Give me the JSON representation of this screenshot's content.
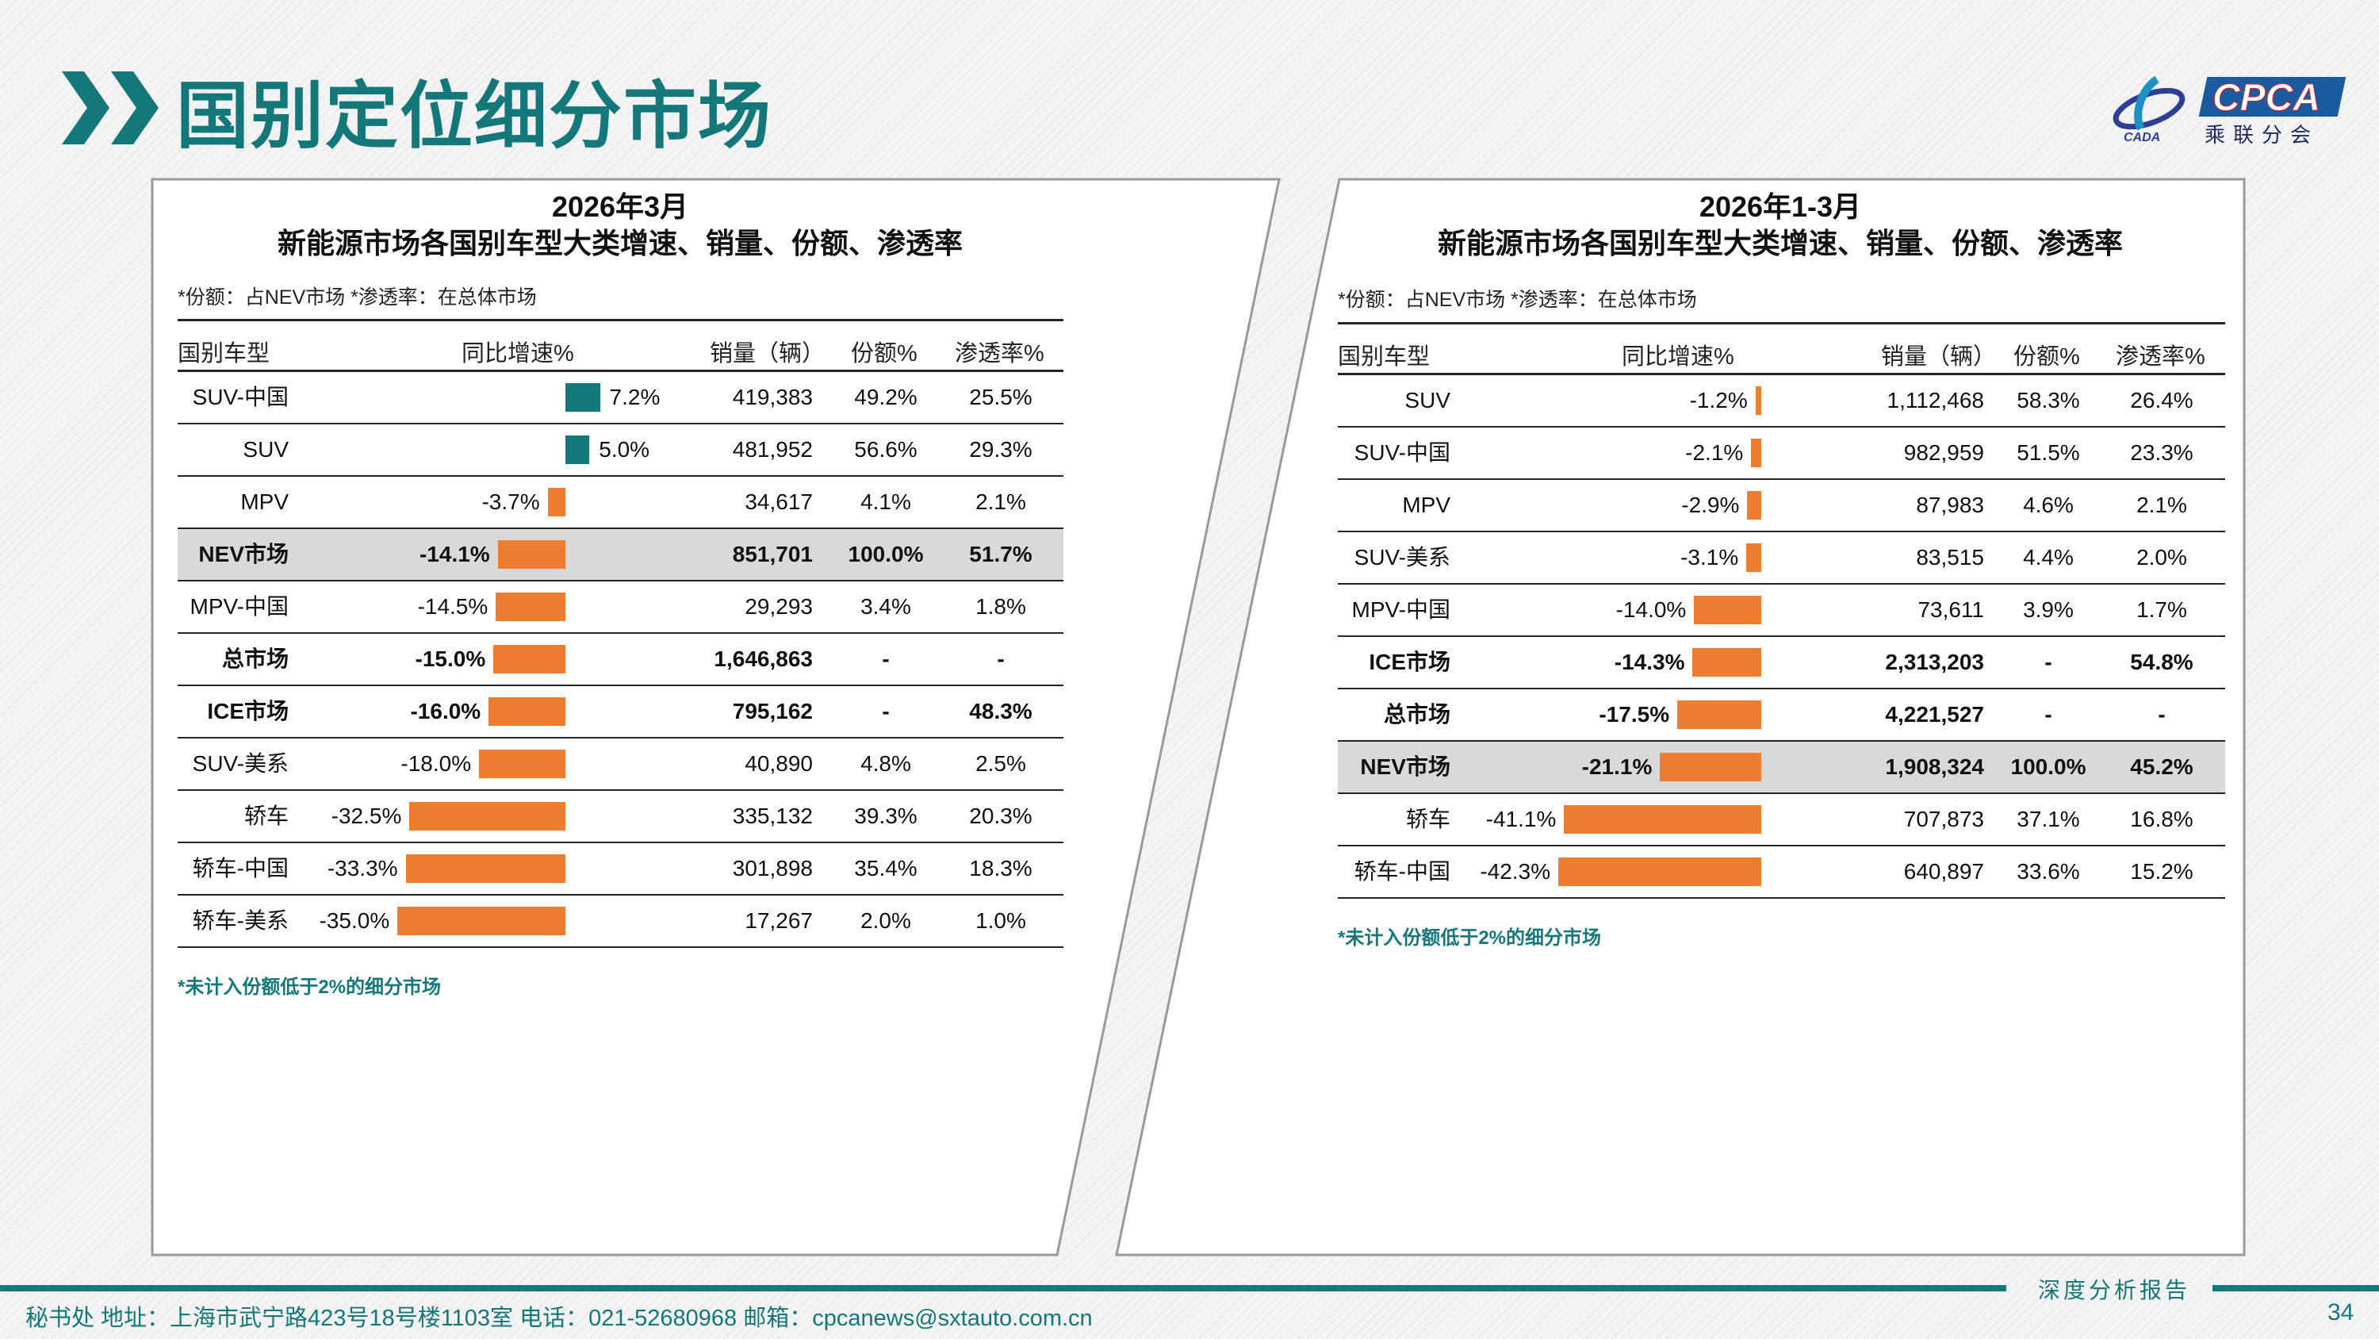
{
  "header": {
    "title": "国别定位细分市场",
    "logo_text": "CPCA",
    "logo_sub": "乘联分会",
    "logo_left": "CADA"
  },
  "colors": {
    "teal": "#14777a",
    "positive_bar": "#14777a",
    "negative_bar": "#ed7d31",
    "highlight_row": "#d9d9d9"
  },
  "left": {
    "title1": "2026年3月",
    "title2": "新能源市场各国别车型大类增速、销量、份额、渗透率",
    "note": "*份额：占NEV市场   *渗透率：在总体市场",
    "columns": [
      "国别车型",
      "同比增速%",
      "销量（辆）",
      "份额%",
      "渗透率%"
    ],
    "rows": [
      {
        "name": "SUV-中国",
        "growth": "7.2%",
        "sales": "419,383",
        "share": "49.2%",
        "pen": "25.5%"
      },
      {
        "name": "SUV",
        "growth": "5.0%",
        "sales": "481,952",
        "share": "56.6%",
        "pen": "29.3%"
      },
      {
        "name": "MPV",
        "growth": "-3.7%",
        "sales": "34,617",
        "share": "4.1%",
        "pen": "2.1%"
      },
      {
        "name": "NEV市场",
        "growth": "-14.1%",
        "sales": "851,701",
        "share": "100.0%",
        "pen": "51.7%",
        "bold": true,
        "highlight": true
      },
      {
        "name": "MPV-中国",
        "growth": "-14.5%",
        "sales": "29,293",
        "share": "3.4%",
        "pen": "1.8%"
      },
      {
        "name": "总市场",
        "growth": "-15.0%",
        "sales": "1,646,863",
        "share": "-",
        "pen": "-",
        "bold": true
      },
      {
        "name": "ICE市场",
        "growth": "-16.0%",
        "sales": "795,162",
        "share": "-",
        "pen": "48.3%",
        "bold": true
      },
      {
        "name": "SUV-美系",
        "growth": "-18.0%",
        "sales": "40,890",
        "share": "4.8%",
        "pen": "2.5%"
      },
      {
        "name": "轿车",
        "growth": "-32.5%",
        "sales": "335,132",
        "share": "39.3%",
        "pen": "20.3%"
      },
      {
        "name": "轿车-中国",
        "growth": "-33.3%",
        "sales": "301,898",
        "share": "35.4%",
        "pen": "18.3%"
      },
      {
        "name": "轿车-美系",
        "growth": "-35.0%",
        "sales": "17,267",
        "share": "2.0%",
        "pen": "1.0%"
      }
    ],
    "footnote": "*未计入份额低于2%的细分市场"
  },
  "right": {
    "title1": "2026年1-3月",
    "title2": "新能源市场各国别车型大类增速、销量、份额、渗透率",
    "note": "*份额：占NEV市场   *渗透率：在总体市场",
    "columns": [
      "国别车型",
      "同比增速%",
      "销量（辆）",
      "份额%",
      "渗透率%"
    ],
    "rows": [
      {
        "name": "SUV",
        "growth": "-1.2%",
        "sales": "1,112,468",
        "share": "58.3%",
        "pen": "26.4%"
      },
      {
        "name": "SUV-中国",
        "growth": "-2.1%",
        "sales": "982,959",
        "share": "51.5%",
        "pen": "23.3%"
      },
      {
        "name": "MPV",
        "growth": "-2.9%",
        "sales": "87,983",
        "share": "4.6%",
        "pen": "2.1%"
      },
      {
        "name": "SUV-美系",
        "growth": "-3.1%",
        "sales": "83,515",
        "share": "4.4%",
        "pen": "2.0%"
      },
      {
        "name": "MPV-中国",
        "growth": "-14.0%",
        "sales": "73,611",
        "share": "3.9%",
        "pen": "1.7%"
      },
      {
        "name": "ICE市场",
        "growth": "-14.3%",
        "sales": "2,313,203",
        "share": "-",
        "pen": "54.8%",
        "bold": true
      },
      {
        "name": "总市场",
        "growth": "-17.5%",
        "sales": "4,221,527",
        "share": "-",
        "pen": "-",
        "bold": true
      },
      {
        "name": "NEV市场",
        "growth": "-21.1%",
        "sales": "1,908,324",
        "share": "100.0%",
        "pen": "45.2%",
        "bold": true,
        "highlight": true
      },
      {
        "name": "轿车",
        "growth": "-41.1%",
        "sales": "707,873",
        "share": "37.1%",
        "pen": "16.8%"
      },
      {
        "name": "轿车-中国",
        "growth": "-42.3%",
        "sales": "640,897",
        "share": "33.6%",
        "pen": "15.2%"
      }
    ],
    "footnote": "*未计入份额低于2%的细分市场"
  },
  "footer": {
    "address": "秘书处   地址：上海市武宁路423号18号楼1103室  电话：021-52680968   邮箱：cpcanews@sxtauto.com.cn",
    "report": "深度分析报告",
    "page": "34"
  }
}
